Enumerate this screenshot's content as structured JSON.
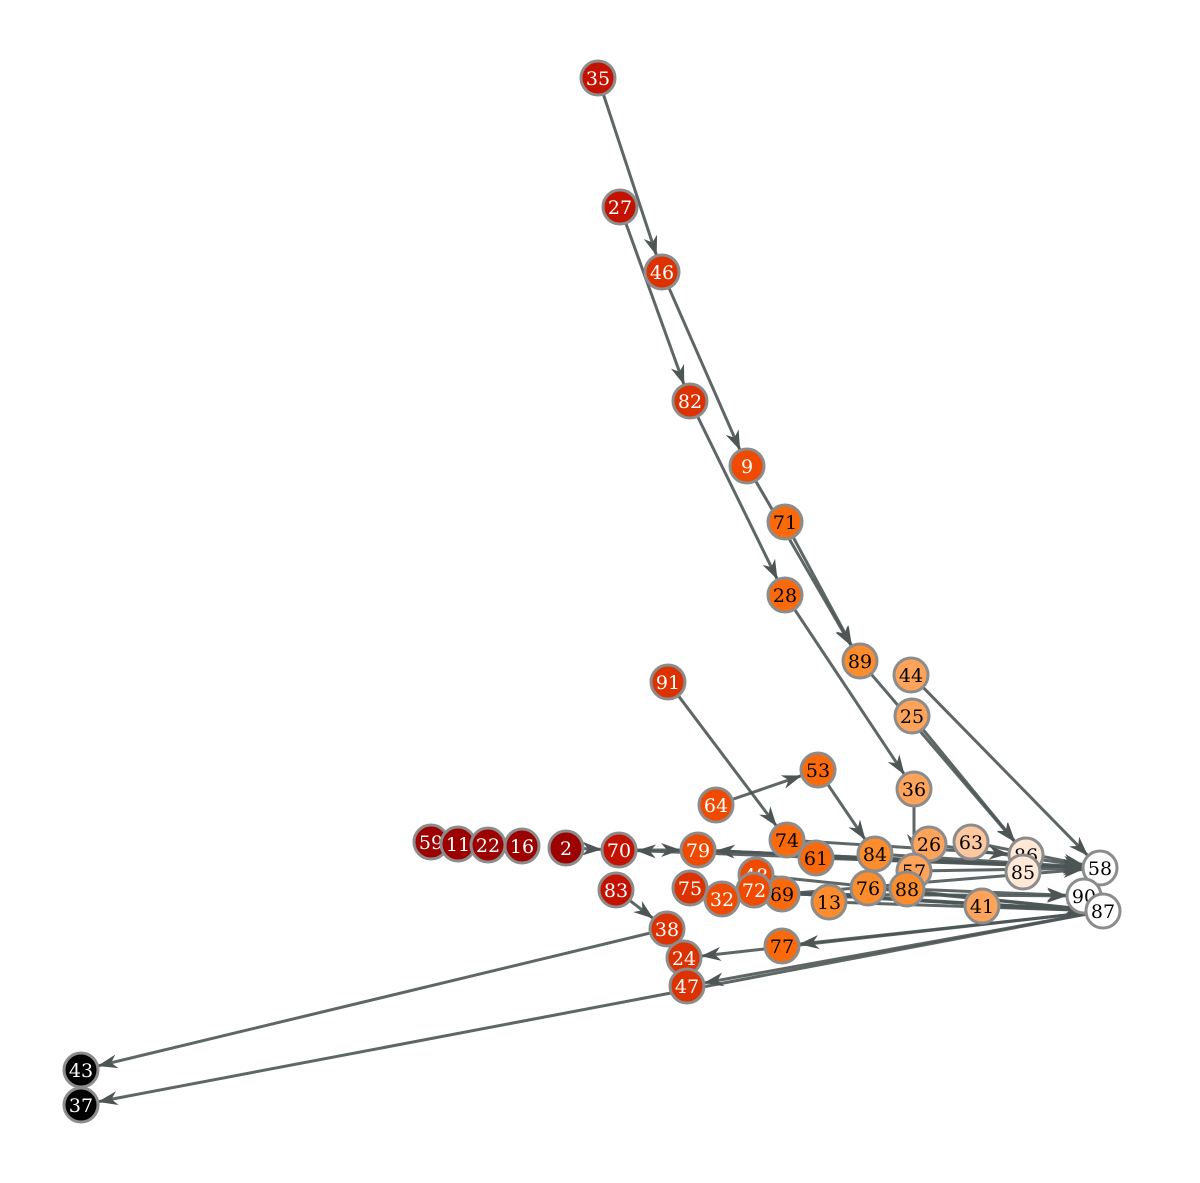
{
  "graph": {
    "colors": {
      "edge": "#4d5555",
      "node_stroke": "#8c8c8c",
      "dark_red": "#9c0000",
      "red": "#c41200",
      "red_orange": "#dc3100",
      "orange_red": "#ef4a00",
      "orange": "#fb6a0a",
      "light_orange": "#fd8d2c",
      "pale_orange": "#fda45a",
      "peach": "#fdc8a0",
      "cream": "#ffe8d6",
      "white": "#ffffff",
      "black": "#000000"
    },
    "nodes": [
      {
        "id": "35",
        "color": "red",
        "text": "light"
      },
      {
        "id": "27",
        "color": "red",
        "text": "light"
      },
      {
        "id": "46",
        "color": "red_orange",
        "text": "light"
      },
      {
        "id": "82",
        "color": "red_orange",
        "text": "light"
      },
      {
        "id": "9",
        "color": "orange_red",
        "text": "light"
      },
      {
        "id": "71",
        "color": "orange",
        "text": "dark"
      },
      {
        "id": "28",
        "color": "orange",
        "text": "dark"
      },
      {
        "id": "89",
        "color": "light_orange",
        "text": "dark"
      },
      {
        "id": "44",
        "color": "pale_orange",
        "text": "dark"
      },
      {
        "id": "25",
        "color": "pale_orange",
        "text": "dark"
      },
      {
        "id": "91",
        "color": "red_orange",
        "text": "light"
      },
      {
        "id": "53",
        "color": "orange",
        "text": "dark"
      },
      {
        "id": "64",
        "color": "orange_red",
        "text": "light"
      },
      {
        "id": "36",
        "color": "pale_orange",
        "text": "dark"
      },
      {
        "id": "59",
        "color": "dark_red",
        "text": "light"
      },
      {
        "id": "11",
        "color": "dark_red",
        "text": "light"
      },
      {
        "id": "22",
        "color": "dark_red",
        "text": "light"
      },
      {
        "id": "16",
        "color": "dark_red",
        "text": "light"
      },
      {
        "id": "2",
        "color": "dark_red",
        "text": "light"
      },
      {
        "id": "70",
        "color": "red",
        "text": "light"
      },
      {
        "id": "83",
        "color": "red",
        "text": "light"
      },
      {
        "id": "79",
        "color": "orange_red",
        "text": "light"
      },
      {
        "id": "74",
        "color": "orange",
        "text": "dark"
      },
      {
        "id": "48",
        "color": "orange_red",
        "text": "light"
      },
      {
        "id": "61",
        "color": "orange",
        "text": "dark"
      },
      {
        "id": "84",
        "color": "light_orange",
        "text": "dark"
      },
      {
        "id": "26",
        "color": "pale_orange",
        "text": "dark"
      },
      {
        "id": "63",
        "color": "peach",
        "text": "dark"
      },
      {
        "id": "57",
        "color": "pale_orange",
        "text": "dark"
      },
      {
        "id": "76",
        "color": "light_orange",
        "text": "dark"
      },
      {
        "id": "88",
        "color": "light_orange",
        "text": "dark"
      },
      {
        "id": "86",
        "color": "cream",
        "text": "dark"
      },
      {
        "id": "85",
        "color": "cream",
        "text": "dark"
      },
      {
        "id": "58",
        "color": "white",
        "text": "dark"
      },
      {
        "id": "90",
        "color": "white",
        "text": "dark"
      },
      {
        "id": "87",
        "color": "white",
        "text": "dark"
      },
      {
        "id": "41",
        "color": "pale_orange",
        "text": "dark"
      },
      {
        "id": "13",
        "color": "light_orange",
        "text": "dark"
      },
      {
        "id": "69",
        "color": "orange",
        "text": "dark"
      },
      {
        "id": "72",
        "color": "orange_red",
        "text": "light"
      },
      {
        "id": "75",
        "color": "red_orange",
        "text": "light"
      },
      {
        "id": "32",
        "color": "orange_red",
        "text": "light"
      },
      {
        "id": "38",
        "color": "red_orange",
        "text": "light"
      },
      {
        "id": "77",
        "color": "orange",
        "text": "dark"
      },
      {
        "id": "24",
        "color": "red_orange",
        "text": "light"
      },
      {
        "id": "47",
        "color": "red_orange",
        "text": "light"
      },
      {
        "id": "43",
        "color": "black",
        "text": "light"
      },
      {
        "id": "37",
        "color": "black",
        "text": "light"
      }
    ],
    "edges": [
      [
        "35",
        "46"
      ],
      [
        "27",
        "82"
      ],
      [
        "46",
        "9"
      ],
      [
        "82",
        "28"
      ],
      [
        "9",
        "89"
      ],
      [
        "71",
        "89"
      ],
      [
        "28",
        "36"
      ],
      [
        "89",
        "86"
      ],
      [
        "44",
        "58"
      ],
      [
        "25",
        "86"
      ],
      [
        "91",
        "74"
      ],
      [
        "64",
        "53"
      ],
      [
        "53",
        "84"
      ],
      [
        "2",
        "70"
      ],
      [
        "70",
        "79"
      ],
      [
        "79",
        "58"
      ],
      [
        "74",
        "86"
      ],
      [
        "61",
        "58"
      ],
      [
        "84",
        "58"
      ],
      [
        "63",
        "58"
      ],
      [
        "26",
        "58"
      ],
      [
        "36",
        "57"
      ],
      [
        "57",
        "58"
      ],
      [
        "76",
        "87"
      ],
      [
        "88",
        "90"
      ],
      [
        "41",
        "87"
      ],
      [
        "13",
        "87"
      ],
      [
        "69",
        "90"
      ],
      [
        "72",
        "87"
      ],
      [
        "32",
        "58"
      ],
      [
        "75",
        "87"
      ],
      [
        "48",
        "87"
      ],
      [
        "83",
        "38"
      ],
      [
        "87",
        "47"
      ],
      [
        "87",
        "24"
      ],
      [
        "87",
        "77"
      ],
      [
        "87",
        "37"
      ],
      [
        "38",
        "43"
      ],
      [
        "58",
        "70"
      ],
      [
        "58",
        "79"
      ],
      [
        "87",
        "75"
      ]
    ]
  }
}
